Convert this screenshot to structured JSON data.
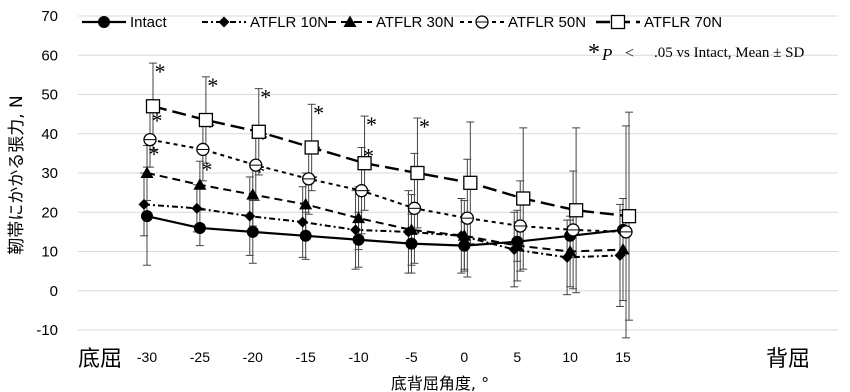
{
  "chart_data": {
    "type": "line",
    "ylabel": "靭帯にかかる張力, N",
    "xlabel": "底背屈角度, °",
    "x_left_label": "底屈",
    "x_right_label": "背屈",
    "annotation": {
      "star": "*",
      "p": "P",
      "lt": "<",
      "rest": ".05 vs Intact, Mean ± SD"
    },
    "ylim": [
      -10,
      70
    ],
    "yticks": [
      -10,
      0,
      10,
      20,
      30,
      40,
      50,
      60,
      70
    ],
    "x": [
      -30,
      -25,
      -20,
      -15,
      -10,
      -5,
      0,
      5,
      10,
      15
    ],
    "xticks": [
      "-30",
      "-25",
      "-20",
      "-15",
      "-10",
      "-5",
      "0",
      "5",
      "10",
      "15"
    ],
    "grid": true,
    "legend_position": "top",
    "series": [
      {
        "name": "Intact",
        "marker": "circle-filled",
        "dash": "",
        "values": [
          19,
          16,
          15,
          14,
          13,
          12,
          11.5,
          12.5,
          14,
          15.5
        ],
        "sd": [
          12.5,
          4.5,
          8,
          6,
          7,
          7.5,
          6,
          5,
          4,
          5
        ]
      },
      {
        "name": "ATFLR 10N",
        "marker": "diamond-filled",
        "dash": "6,3,2,3",
        "values": [
          22,
          21,
          19,
          17.5,
          15.5,
          15,
          14,
          10.5,
          8.5,
          9
        ],
        "sd": [
          8,
          6,
          10,
          9,
          10,
          10.5,
          9.5,
          9.5,
          9.5,
          13
        ]
      },
      {
        "name": "ATFLR 30N",
        "marker": "triangle-filled",
        "dash": "8,5",
        "values": [
          30,
          27,
          24.5,
          22,
          18.5,
          15.5,
          14,
          11.5,
          10,
          10.5
        ],
        "sd": [
          7,
          6,
          8,
          8,
          8,
          9,
          9,
          9,
          9,
          13
        ],
        "significant": [
          true,
          true,
          true,
          true,
          true,
          false,
          false,
          false,
          false,
          false
        ]
      },
      {
        "name": "ATFLR 50N",
        "marker": "circle-open",
        "dash": "4,4",
        "values": [
          38.5,
          36,
          32,
          28.5,
          25.5,
          21,
          18.5,
          16.5,
          15.5,
          15
        ],
        "sd": [
          7,
          8,
          9,
          9,
          11,
          14,
          15,
          11.5,
          15,
          27
        ],
        "significant": [
          true,
          true,
          true,
          true,
          true,
          false,
          false,
          false,
          false,
          false
        ]
      },
      {
        "name": "ATFLR 70N",
        "marker": "square-open",
        "dash": "14,6",
        "values": [
          47,
          43.5,
          40.5,
          36.5,
          32.5,
          30,
          27.5,
          23.5,
          20.5,
          19
        ],
        "sd": [
          11,
          11,
          11,
          11,
          12,
          14,
          15.5,
          18,
          21,
          26.5
        ],
        "significant": [
          true,
          true,
          true,
          true,
          true,
          true,
          false,
          false,
          false,
          false
        ]
      }
    ]
  }
}
